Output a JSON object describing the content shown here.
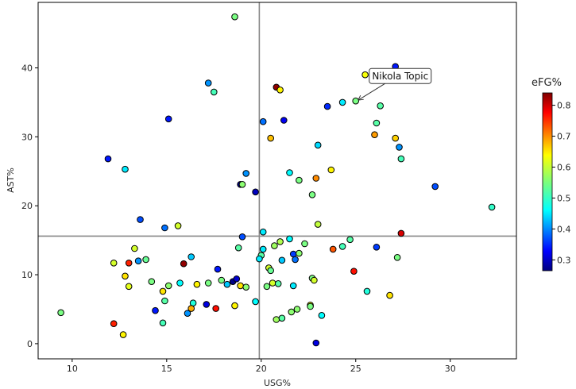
{
  "chart_data": {
    "type": "scatter",
    "title": "",
    "xlabel": "USG%",
    "ylabel": "AST%",
    "xlim": [
      8.2,
      33.5
    ],
    "ylim": [
      -2.2,
      49.5
    ],
    "xticks": [
      10,
      15,
      20,
      25,
      30
    ],
    "yticks": [
      0,
      10,
      20,
      30,
      40
    ],
    "reference_lines": {
      "vertical_x": 19.9,
      "horizontal_y": 15.6
    },
    "colorbar": {
      "label": "eFG%",
      "colormap": "jet",
      "min": 0.265,
      "max": 0.84,
      "ticks": [
        0.3,
        0.4,
        0.5,
        0.6,
        0.7,
        0.8
      ]
    },
    "annotation": {
      "text": "Nikola Topic",
      "point": [
        25.0,
        35.2
      ]
    },
    "points": [
      {
        "x": 18.6,
        "y": 47.4,
        "c": 0.55
      },
      {
        "x": 27.1,
        "y": 40.2,
        "c": 0.35
      },
      {
        "x": 25.5,
        "y": 39.0,
        "c": 0.62
      },
      {
        "x": 20.8,
        "y": 37.2,
        "c": 0.83
      },
      {
        "x": 21.0,
        "y": 36.8,
        "c": 0.63
      },
      {
        "x": 17.2,
        "y": 37.8,
        "c": 0.42
      },
      {
        "x": 17.5,
        "y": 36.5,
        "c": 0.52
      },
      {
        "x": 24.3,
        "y": 35.0,
        "c": 0.47
      },
      {
        "x": 25.0,
        "y": 35.2,
        "c": 0.55
      },
      {
        "x": 23.5,
        "y": 34.4,
        "c": 0.36
      },
      {
        "x": 26.3,
        "y": 34.5,
        "c": 0.53
      },
      {
        "x": 15.1,
        "y": 32.6,
        "c": 0.35
      },
      {
        "x": 20.1,
        "y": 32.2,
        "c": 0.4
      },
      {
        "x": 21.2,
        "y": 32.4,
        "c": 0.33
      },
      {
        "x": 26.1,
        "y": 32.0,
        "c": 0.53
      },
      {
        "x": 20.5,
        "y": 29.8,
        "c": 0.66
      },
      {
        "x": 26.0,
        "y": 30.3,
        "c": 0.68
      },
      {
        "x": 27.1,
        "y": 29.8,
        "c": 0.65
      },
      {
        "x": 23.0,
        "y": 28.8,
        "c": 0.46
      },
      {
        "x": 27.3,
        "y": 28.5,
        "c": 0.42
      },
      {
        "x": 11.9,
        "y": 26.8,
        "c": 0.35
      },
      {
        "x": 27.4,
        "y": 26.8,
        "c": 0.52
      },
      {
        "x": 12.8,
        "y": 25.3,
        "c": 0.47
      },
      {
        "x": 23.7,
        "y": 25.2,
        "c": 0.63
      },
      {
        "x": 21.5,
        "y": 24.8,
        "c": 0.48
      },
      {
        "x": 19.2,
        "y": 24.7,
        "c": 0.42
      },
      {
        "x": 22.9,
        "y": 24.0,
        "c": 0.69
      },
      {
        "x": 22.0,
        "y": 23.7,
        "c": 0.55
      },
      {
        "x": 18.9,
        "y": 23.1,
        "c": 0.27
      },
      {
        "x": 19.0,
        "y": 23.1,
        "c": 0.56
      },
      {
        "x": 29.2,
        "y": 22.8,
        "c": 0.38
      },
      {
        "x": 19.7,
        "y": 22.0,
        "c": 0.3
      },
      {
        "x": 22.7,
        "y": 21.6,
        "c": 0.55
      },
      {
        "x": 32.2,
        "y": 19.8,
        "c": 0.51
      },
      {
        "x": 13.6,
        "y": 18.0,
        "c": 0.38
      },
      {
        "x": 15.6,
        "y": 17.1,
        "c": 0.6
      },
      {
        "x": 14.9,
        "y": 16.8,
        "c": 0.4
      },
      {
        "x": 23.0,
        "y": 17.3,
        "c": 0.59
      },
      {
        "x": 20.1,
        "y": 16.2,
        "c": 0.47
      },
      {
        "x": 27.4,
        "y": 16.0,
        "c": 0.79
      },
      {
        "x": 19.0,
        "y": 15.5,
        "c": 0.38
      },
      {
        "x": 21.5,
        "y": 15.2,
        "c": 0.48
      },
      {
        "x": 24.7,
        "y": 15.1,
        "c": 0.53
      },
      {
        "x": 21.0,
        "y": 14.8,
        "c": 0.58
      },
      {
        "x": 22.3,
        "y": 14.5,
        "c": 0.55
      },
      {
        "x": 20.7,
        "y": 14.2,
        "c": 0.57
      },
      {
        "x": 24.3,
        "y": 14.1,
        "c": 0.52
      },
      {
        "x": 26.1,
        "y": 14.0,
        "c": 0.37
      },
      {
        "x": 23.8,
        "y": 13.7,
        "c": 0.72
      },
      {
        "x": 13.3,
        "y": 13.8,
        "c": 0.6
      },
      {
        "x": 21.7,
        "y": 13.0,
        "c": 0.37
      },
      {
        "x": 18.8,
        "y": 13.9,
        "c": 0.53
      },
      {
        "x": 20.1,
        "y": 13.7,
        "c": 0.47
      },
      {
        "x": 20.0,
        "y": 12.8,
        "c": 0.53
      },
      {
        "x": 19.9,
        "y": 12.3,
        "c": 0.47
      },
      {
        "x": 21.1,
        "y": 12.1,
        "c": 0.45
      },
      {
        "x": 21.8,
        "y": 12.2,
        "c": 0.4
      },
      {
        "x": 22.0,
        "y": 13.1,
        "c": 0.56
      },
      {
        "x": 27.2,
        "y": 12.5,
        "c": 0.55
      },
      {
        "x": 12.2,
        "y": 11.7,
        "c": 0.6
      },
      {
        "x": 13.0,
        "y": 11.7,
        "c": 0.75
      },
      {
        "x": 13.5,
        "y": 12.0,
        "c": 0.42
      },
      {
        "x": 13.9,
        "y": 12.2,
        "c": 0.54
      },
      {
        "x": 15.9,
        "y": 11.6,
        "c": 0.83
      },
      {
        "x": 16.3,
        "y": 12.6,
        "c": 0.45
      },
      {
        "x": 20.4,
        "y": 11.0,
        "c": 0.6
      },
      {
        "x": 20.5,
        "y": 10.6,
        "c": 0.54
      },
      {
        "x": 17.7,
        "y": 10.8,
        "c": 0.35
      },
      {
        "x": 24.9,
        "y": 10.5,
        "c": 0.76
      },
      {
        "x": 12.8,
        "y": 9.8,
        "c": 0.64
      },
      {
        "x": 14.2,
        "y": 9.0,
        "c": 0.55
      },
      {
        "x": 15.1,
        "y": 8.4,
        "c": 0.56
      },
      {
        "x": 15.7,
        "y": 8.8,
        "c": 0.48
      },
      {
        "x": 16.6,
        "y": 8.6,
        "c": 0.63
      },
      {
        "x": 17.2,
        "y": 8.8,
        "c": 0.55
      },
      {
        "x": 17.9,
        "y": 9.2,
        "c": 0.55
      },
      {
        "x": 18.2,
        "y": 8.6,
        "c": 0.45
      },
      {
        "x": 18.5,
        "y": 9.0,
        "c": 0.27
      },
      {
        "x": 18.7,
        "y": 9.4,
        "c": 0.31
      },
      {
        "x": 18.9,
        "y": 8.4,
        "c": 0.64
      },
      {
        "x": 19.2,
        "y": 8.2,
        "c": 0.56
      },
      {
        "x": 20.3,
        "y": 8.3,
        "c": 0.55
      },
      {
        "x": 20.6,
        "y": 8.8,
        "c": 0.6
      },
      {
        "x": 20.9,
        "y": 8.7,
        "c": 0.53
      },
      {
        "x": 21.7,
        "y": 8.4,
        "c": 0.47
      },
      {
        "x": 22.7,
        "y": 9.5,
        "c": 0.55
      },
      {
        "x": 22.8,
        "y": 9.2,
        "c": 0.6
      },
      {
        "x": 13.0,
        "y": 8.3,
        "c": 0.61
      },
      {
        "x": 14.8,
        "y": 7.6,
        "c": 0.64
      },
      {
        "x": 25.6,
        "y": 7.6,
        "c": 0.5
      },
      {
        "x": 26.8,
        "y": 7.0,
        "c": 0.64
      },
      {
        "x": 14.9,
        "y": 6.2,
        "c": 0.53
      },
      {
        "x": 16.4,
        "y": 5.9,
        "c": 0.5
      },
      {
        "x": 17.1,
        "y": 5.7,
        "c": 0.32
      },
      {
        "x": 17.6,
        "y": 5.1,
        "c": 0.76
      },
      {
        "x": 16.3,
        "y": 5.1,
        "c": 0.67
      },
      {
        "x": 18.6,
        "y": 5.5,
        "c": 0.63
      },
      {
        "x": 19.7,
        "y": 6.1,
        "c": 0.48
      },
      {
        "x": 22.6,
        "y": 5.6,
        "c": 0.62
      },
      {
        "x": 22.6,
        "y": 5.4,
        "c": 0.55
      },
      {
        "x": 9.4,
        "y": 4.5,
        "c": 0.55
      },
      {
        "x": 14.4,
        "y": 4.8,
        "c": 0.35
      },
      {
        "x": 16.1,
        "y": 4.4,
        "c": 0.42
      },
      {
        "x": 21.6,
        "y": 4.6,
        "c": 0.56
      },
      {
        "x": 21.9,
        "y": 5.0,
        "c": 0.56
      },
      {
        "x": 23.2,
        "y": 4.1,
        "c": 0.48
      },
      {
        "x": 20.8,
        "y": 3.5,
        "c": 0.57
      },
      {
        "x": 21.1,
        "y": 3.7,
        "c": 0.53
      },
      {
        "x": 12.2,
        "y": 2.9,
        "c": 0.75
      },
      {
        "x": 14.8,
        "y": 3.0,
        "c": 0.52
      },
      {
        "x": 12.7,
        "y": 1.3,
        "c": 0.63
      },
      {
        "x": 22.9,
        "y": 0.1,
        "c": 0.32
      }
    ]
  }
}
